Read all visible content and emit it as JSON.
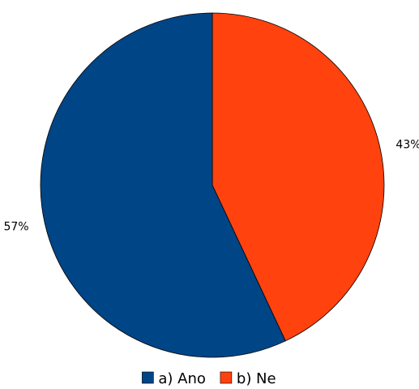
{
  "chart_data": {
    "type": "pie",
    "title": "",
    "categories": [
      "a) Ano",
      "b) Ne"
    ],
    "values": [
      57,
      43
    ],
    "value_labels": [
      "57%",
      "43%"
    ],
    "colors": [
      "#004586",
      "#ff420e"
    ],
    "start_angle": "12 o'clock",
    "direction": "counter-clockwise from top for first slice",
    "legend": {
      "placement": "bottom-center",
      "items": [
        {
          "label": "a) Ano",
          "color": "#004586"
        },
        {
          "label": "b) Ne",
          "color": "#ff420e"
        }
      ]
    }
  }
}
